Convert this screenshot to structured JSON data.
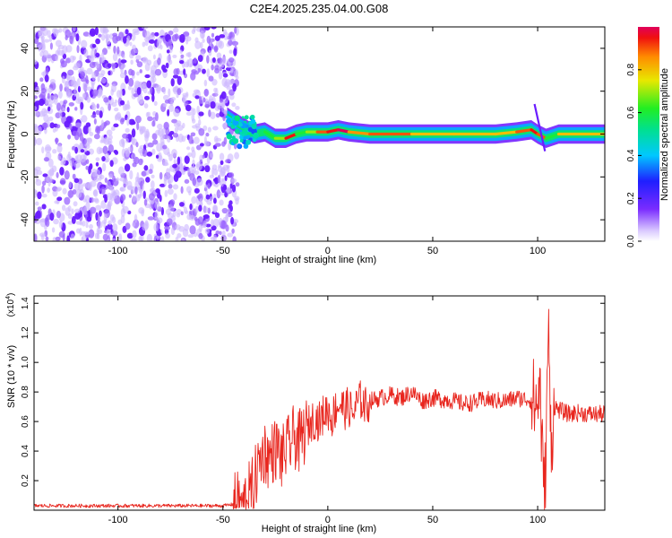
{
  "title": "C2E4.2025.235.04.00.G08",
  "colors": {
    "snr_line": "#e8261e",
    "spectrogram_ridge": "#e8261e",
    "noise_purple": "#7a2cff",
    "axis": "#000000"
  },
  "chart_data": [
    {
      "type": "heatmap",
      "xlabel": "Height of straight line (km)",
      "ylabel": "Frequency (Hz)",
      "xlim": [
        -140,
        132
      ],
      "ylim": [
        -50,
        50
      ],
      "xticks": [
        -100,
        -50,
        0,
        50,
        100
      ],
      "yticks": [
        -40,
        -20,
        0,
        20,
        40
      ],
      "colorbar": {
        "label": "Normalized spectral amplitude",
        "range": [
          0,
          1
        ],
        "ticks": [
          "0.0",
          "0.2",
          "0.4",
          "0.6",
          "0.8"
        ],
        "colormap": "rainbow (violet-blue-cyan-green-yellow-red)"
      },
      "noise_region_x": [
        -140,
        -45
      ],
      "ridge": {
        "x": [
          -48,
          -45,
          -40,
          -35,
          -30,
          -25,
          -20,
          -15,
          -10,
          -5,
          0,
          5,
          10,
          20,
          40,
          60,
          80,
          90,
          97,
          100,
          104,
          110,
          132
        ],
        "y": [
          8,
          6,
          3,
          0,
          1,
          -2,
          -2,
          0,
          1,
          1,
          1,
          2,
          1,
          0,
          0,
          0,
          0,
          1,
          2,
          0,
          -2,
          0,
          0
        ],
        "amp": [
          0.4,
          0.45,
          0.5,
          0.55,
          0.6,
          0.7,
          0.95,
          0.6,
          0.7,
          0.9,
          0.95,
          1.0,
          0.85,
          0.9,
          0.8,
          0.8,
          0.8,
          0.9,
          0.95,
          0.9,
          0.6,
          0.8,
          0.8
        ]
      },
      "spur": {
        "x": 98.5,
        "y_range": [
          -8,
          14
        ]
      }
    },
    {
      "type": "line",
      "xlabel": "Height of straight line (km)",
      "ylabel": "SNR (10 * v/v)",
      "scale_label": "(x10",
      "scale_exponent": "4",
      "scale_suffix": ")",
      "xlim": [
        -140,
        132
      ],
      "ylim": [
        0,
        1.45
      ],
      "xticks": [
        -100,
        -50,
        0,
        50,
        100
      ],
      "yticks": [
        "0.2",
        "0.4",
        "0.6",
        "0.8",
        "1.0",
        "1.2",
        "1.4"
      ],
      "series": [
        {
          "x": [
            -140,
            -120,
            -100,
            -80,
            -60,
            -50,
            -45,
            -40,
            -38,
            -36,
            -34,
            -32,
            -30,
            -28,
            -26,
            -24,
            -22,
            -20,
            -18,
            -16,
            -14,
            -12,
            -10,
            -8,
            -6,
            -4,
            -2,
            0,
            2,
            4,
            6,
            8,
            10,
            12,
            14,
            16,
            18,
            20,
            25,
            30,
            35,
            40,
            45,
            50,
            55,
            60,
            65,
            70,
            75,
            80,
            85,
            90,
            95,
            98,
            100,
            101,
            102,
            103,
            104,
            105,
            106,
            107,
            108,
            110,
            115,
            120,
            125,
            132
          ],
          "y": [
            0.03,
            0.03,
            0.03,
            0.03,
            0.03,
            0.03,
            0.04,
            0.06,
            0.1,
            0.15,
            0.25,
            0.35,
            0.4,
            0.35,
            0.4,
            0.42,
            0.35,
            0.4,
            0.45,
            0.5,
            0.45,
            0.5,
            0.55,
            0.6,
            0.62,
            0.6,
            0.65,
            0.68,
            0.62,
            0.7,
            0.72,
            0.68,
            0.7,
            0.65,
            0.72,
            0.75,
            0.7,
            0.74,
            0.76,
            0.78,
            0.76,
            0.8,
            0.74,
            0.76,
            0.75,
            0.74,
            0.72,
            0.73,
            0.75,
            0.74,
            0.74,
            0.76,
            0.75,
            0.74,
            0.7,
            0.9,
            0.45,
            0.1,
            0.3,
            1.3,
            0.6,
            0.5,
            0.7,
            0.68,
            0.65,
            0.66,
            0.65,
            0.65
          ]
        }
      ]
    }
  ]
}
